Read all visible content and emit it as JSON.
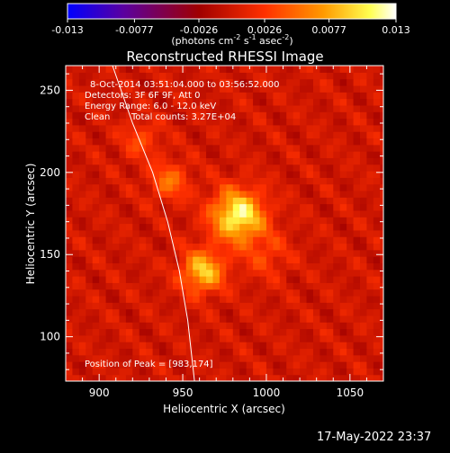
{
  "chart_data": {
    "type": "heatmap",
    "title": "Reconstructed RHESSI Image",
    "xlabel": "Heliocentric X (arcsec)",
    "ylabel": "Heliocentric Y (arcsec)",
    "xlim": [
      880,
      1070
    ],
    "ylim": [
      73,
      265
    ],
    "xticks": [
      900,
      950,
      1000,
      1050
    ],
    "yticks": [
      100,
      150,
      200,
      250
    ],
    "colorbar": {
      "min": -0.013,
      "max": 0.013,
      "ticks": [
        "-0.013",
        "-0.0077",
        "-0.0026",
        "0.0026",
        "0.0077",
        "0.013"
      ],
      "unit_main": "(photons cm",
      "unit_exp1": "-2",
      "unit_mid": " s",
      "unit_exp2": "-1",
      "unit_mid2": " asec",
      "unit_exp3": "-2",
      "unit_end": ")",
      "colormap": [
        "#0000ff",
        "#5a00a0",
        "#a00000",
        "#ff3000",
        "#ff9a00",
        "#ffff50",
        "#ffffff"
      ]
    },
    "annotations": {
      "time_range": "8-Oct-2014 03:51:04.000 to 03:56:52.000",
      "detectors": "Detectors: 3F 6F 9F, Att 0",
      "energy": "Energy Range: 6.0 - 12.0 keV",
      "method": "Clean",
      "counts": "Total counts: 3.27E+04",
      "peak": "Position of Peak = [983,174]"
    },
    "peak": [
      983,
      174
    ],
    "sources": [
      {
        "x": 983,
        "y": 174,
        "amp": 1.0,
        "sigma": 11
      },
      {
        "x": 962,
        "y": 140,
        "amp": 0.78,
        "sigma": 9
      },
      {
        "x": 942,
        "y": 195,
        "amp": 0.45,
        "sigma": 8
      },
      {
        "x": 925,
        "y": 220,
        "amp": 0.3,
        "sigma": 8
      },
      {
        "x": 1000,
        "y": 150,
        "amp": 0.25,
        "sigma": 10
      }
    ],
    "limb_points": [
      [
        908,
        265
      ],
      [
        920,
        230
      ],
      [
        932,
        200
      ],
      [
        941,
        170
      ],
      [
        948,
        140
      ],
      [
        953,
        110
      ],
      [
        957,
        73
      ]
    ]
  },
  "timestamp": "17-May-2022 23:37"
}
